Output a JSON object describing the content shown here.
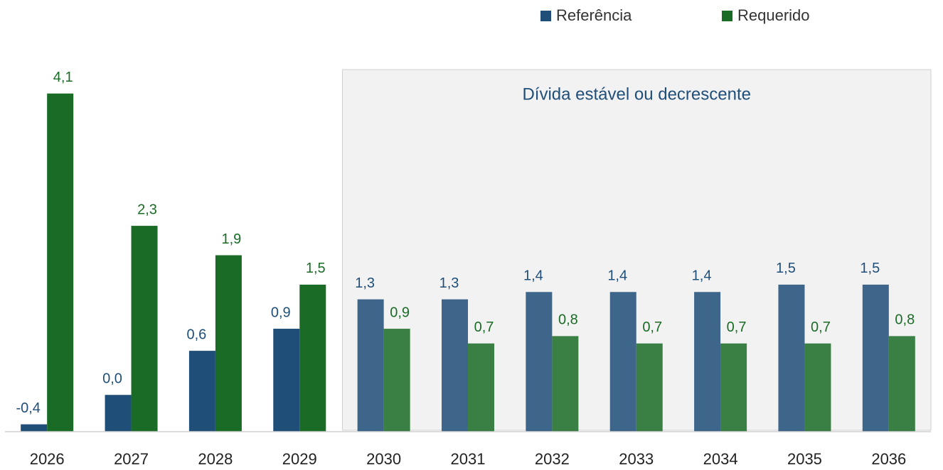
{
  "chart_data": {
    "type": "bar",
    "categories": [
      "2026",
      "2027",
      "2028",
      "2029",
      "2030",
      "2031",
      "2032",
      "2033",
      "2034",
      "2035",
      "2036"
    ],
    "series": [
      {
        "name": "Referência",
        "color": "#1f4e79",
        "values": [
          -0.4,
          0.0,
          0.6,
          0.9,
          1.3,
          1.3,
          1.4,
          1.4,
          1.4,
          1.5,
          1.5
        ],
        "value_labels": [
          "-0,4",
          "0,0",
          "0,6",
          "0,9",
          "1,3",
          "1,3",
          "1,4",
          "1,4",
          "1,4",
          "1,5",
          "1,5"
        ]
      },
      {
        "name": "Requerido",
        "color": "#1a6b26",
        "values": [
          4.1,
          2.3,
          1.9,
          1.5,
          0.9,
          0.7,
          0.8,
          0.7,
          0.7,
          0.7,
          0.8
        ],
        "value_labels": [
          "4,1",
          "2,3",
          "1,9",
          "1,5",
          "0,9",
          "0,7",
          "0,8",
          "0,7",
          "0,7",
          "0,7",
          "0,8"
        ]
      }
    ],
    "ylim": [
      -0.5,
      4.3
    ],
    "annotation": {
      "text": "Dívida estável ou decrescente",
      "from": "2030",
      "to": "2036"
    },
    "legend": "top-right"
  }
}
